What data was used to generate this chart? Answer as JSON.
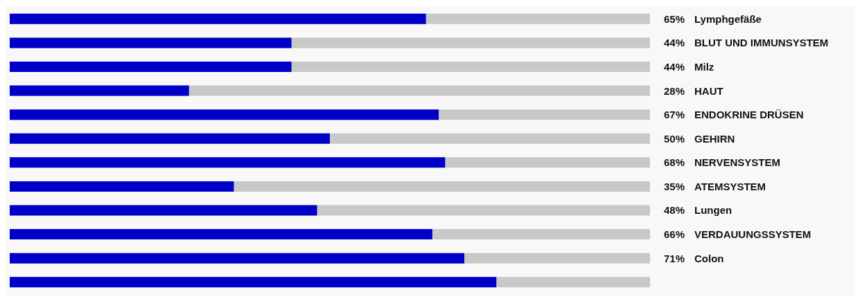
{
  "chart_data": {
    "type": "bar",
    "orientation": "horizontal",
    "categories": [
      "Lymphgefäße",
      "BLUT UND IMMUNSYSTEM",
      "Milz",
      "HAUT",
      "ENDOKRINE DRÜSEN",
      "GEHIRN",
      "NERVENSYSTEM",
      "ATEMSYSTEM",
      "Lungen",
      "VERDAUUNGSSYSTEM",
      "Colon",
      null
    ],
    "values": [
      65,
      44,
      44,
      28,
      67,
      50,
      68,
      35,
      48,
      66,
      71,
      76
    ],
    "value_labels": [
      "65%",
      "44%",
      "44%",
      "28%",
      "67%",
      "50%",
      "68%",
      "35%",
      "48%",
      "66%",
      "71%",
      null
    ],
    "color": "#0000c8",
    "xlim": [
      0,
      100
    ],
    "tick_labels": "y"
  }
}
